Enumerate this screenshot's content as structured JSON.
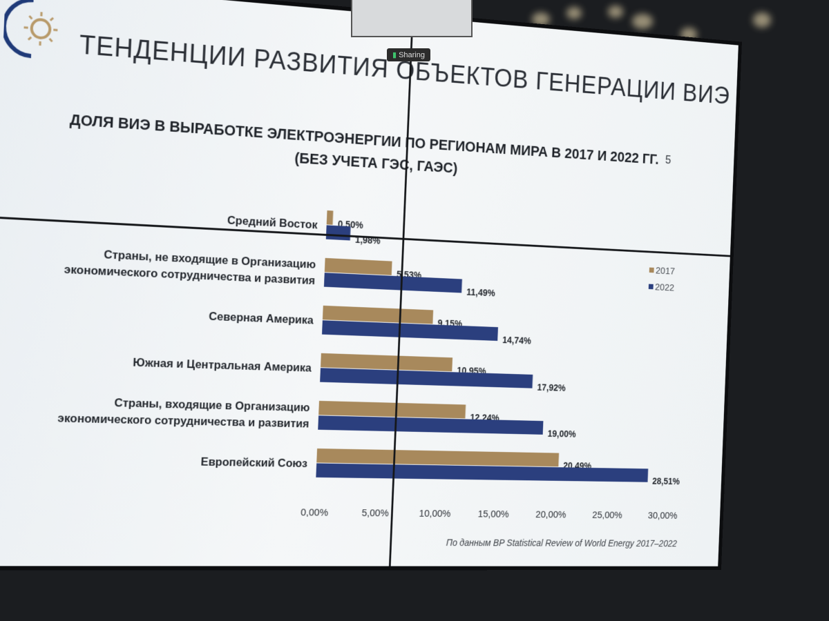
{
  "slide": {
    "title": "ТЕНДЕНЦИИ РАЗВИТИЯ ОБЪЕКТОВ ГЕНЕРАЦИИ ВИЭ",
    "page_number": "5",
    "source": "По данным BP Statistical Review of World Energy 2017–2022",
    "sharing_label": "Sharing",
    "logo_icon": "sun-logo-icon"
  },
  "chart_data": {
    "type": "bar",
    "orientation": "horizontal",
    "title_line1": "ДОЛЯ ВИЭ В ВЫРАБОТКЕ ЭЛЕКТРОЭНЕРГИИ ПО РЕГИОНАМ МИРА В 2017 И 2022 ГГ.",
    "title_line2": "(БЕЗ УЧЕТА ГЭС, ГАЭС)",
    "categories": [
      "Средний Восток",
      "Страны, не входящие в Организацию экономического сотрудничества и развития",
      "Северная Америка",
      "Южная и Центральная Америка",
      "Страны, входящие в Организацию экономического сотрудничества и развития",
      "Европейский Союз"
    ],
    "category_lines": [
      [
        "Средний Восток"
      ],
      [
        "Страны, не входящие в Организацию",
        "экономического сотрудничества и развития"
      ],
      [
        "Северная Америка"
      ],
      [
        "Южная и Центральная Америка"
      ],
      [
        "Страны, входящие в Организацию",
        "экономического сотрудничества и развития"
      ],
      [
        "Европейский Союз"
      ]
    ],
    "series": [
      {
        "name": "2017",
        "color": "#a8895c",
        "values": [
          0.5,
          5.53,
          9.15,
          10.95,
          12.24,
          20.49
        ],
        "labels": [
          "0,50%",
          "5,53%",
          "9,15%",
          "10,95%",
          "12,24%",
          "20,49%"
        ]
      },
      {
        "name": "2022",
        "color": "#2b3f7e",
        "values": [
          1.98,
          11.49,
          14.74,
          17.92,
          19.0,
          28.51
        ],
        "labels": [
          "1,98%",
          "11,49%",
          "14,74%",
          "17,92%",
          "19,00%",
          "28,51%"
        ]
      }
    ],
    "xlim": [
      0,
      30
    ],
    "x_ticks": [
      "0,00%",
      "5,00%",
      "10,00%",
      "15,00%",
      "20,00%",
      "25,00%",
      "30,00%"
    ],
    "legend_position": "right",
    "grid": false
  }
}
